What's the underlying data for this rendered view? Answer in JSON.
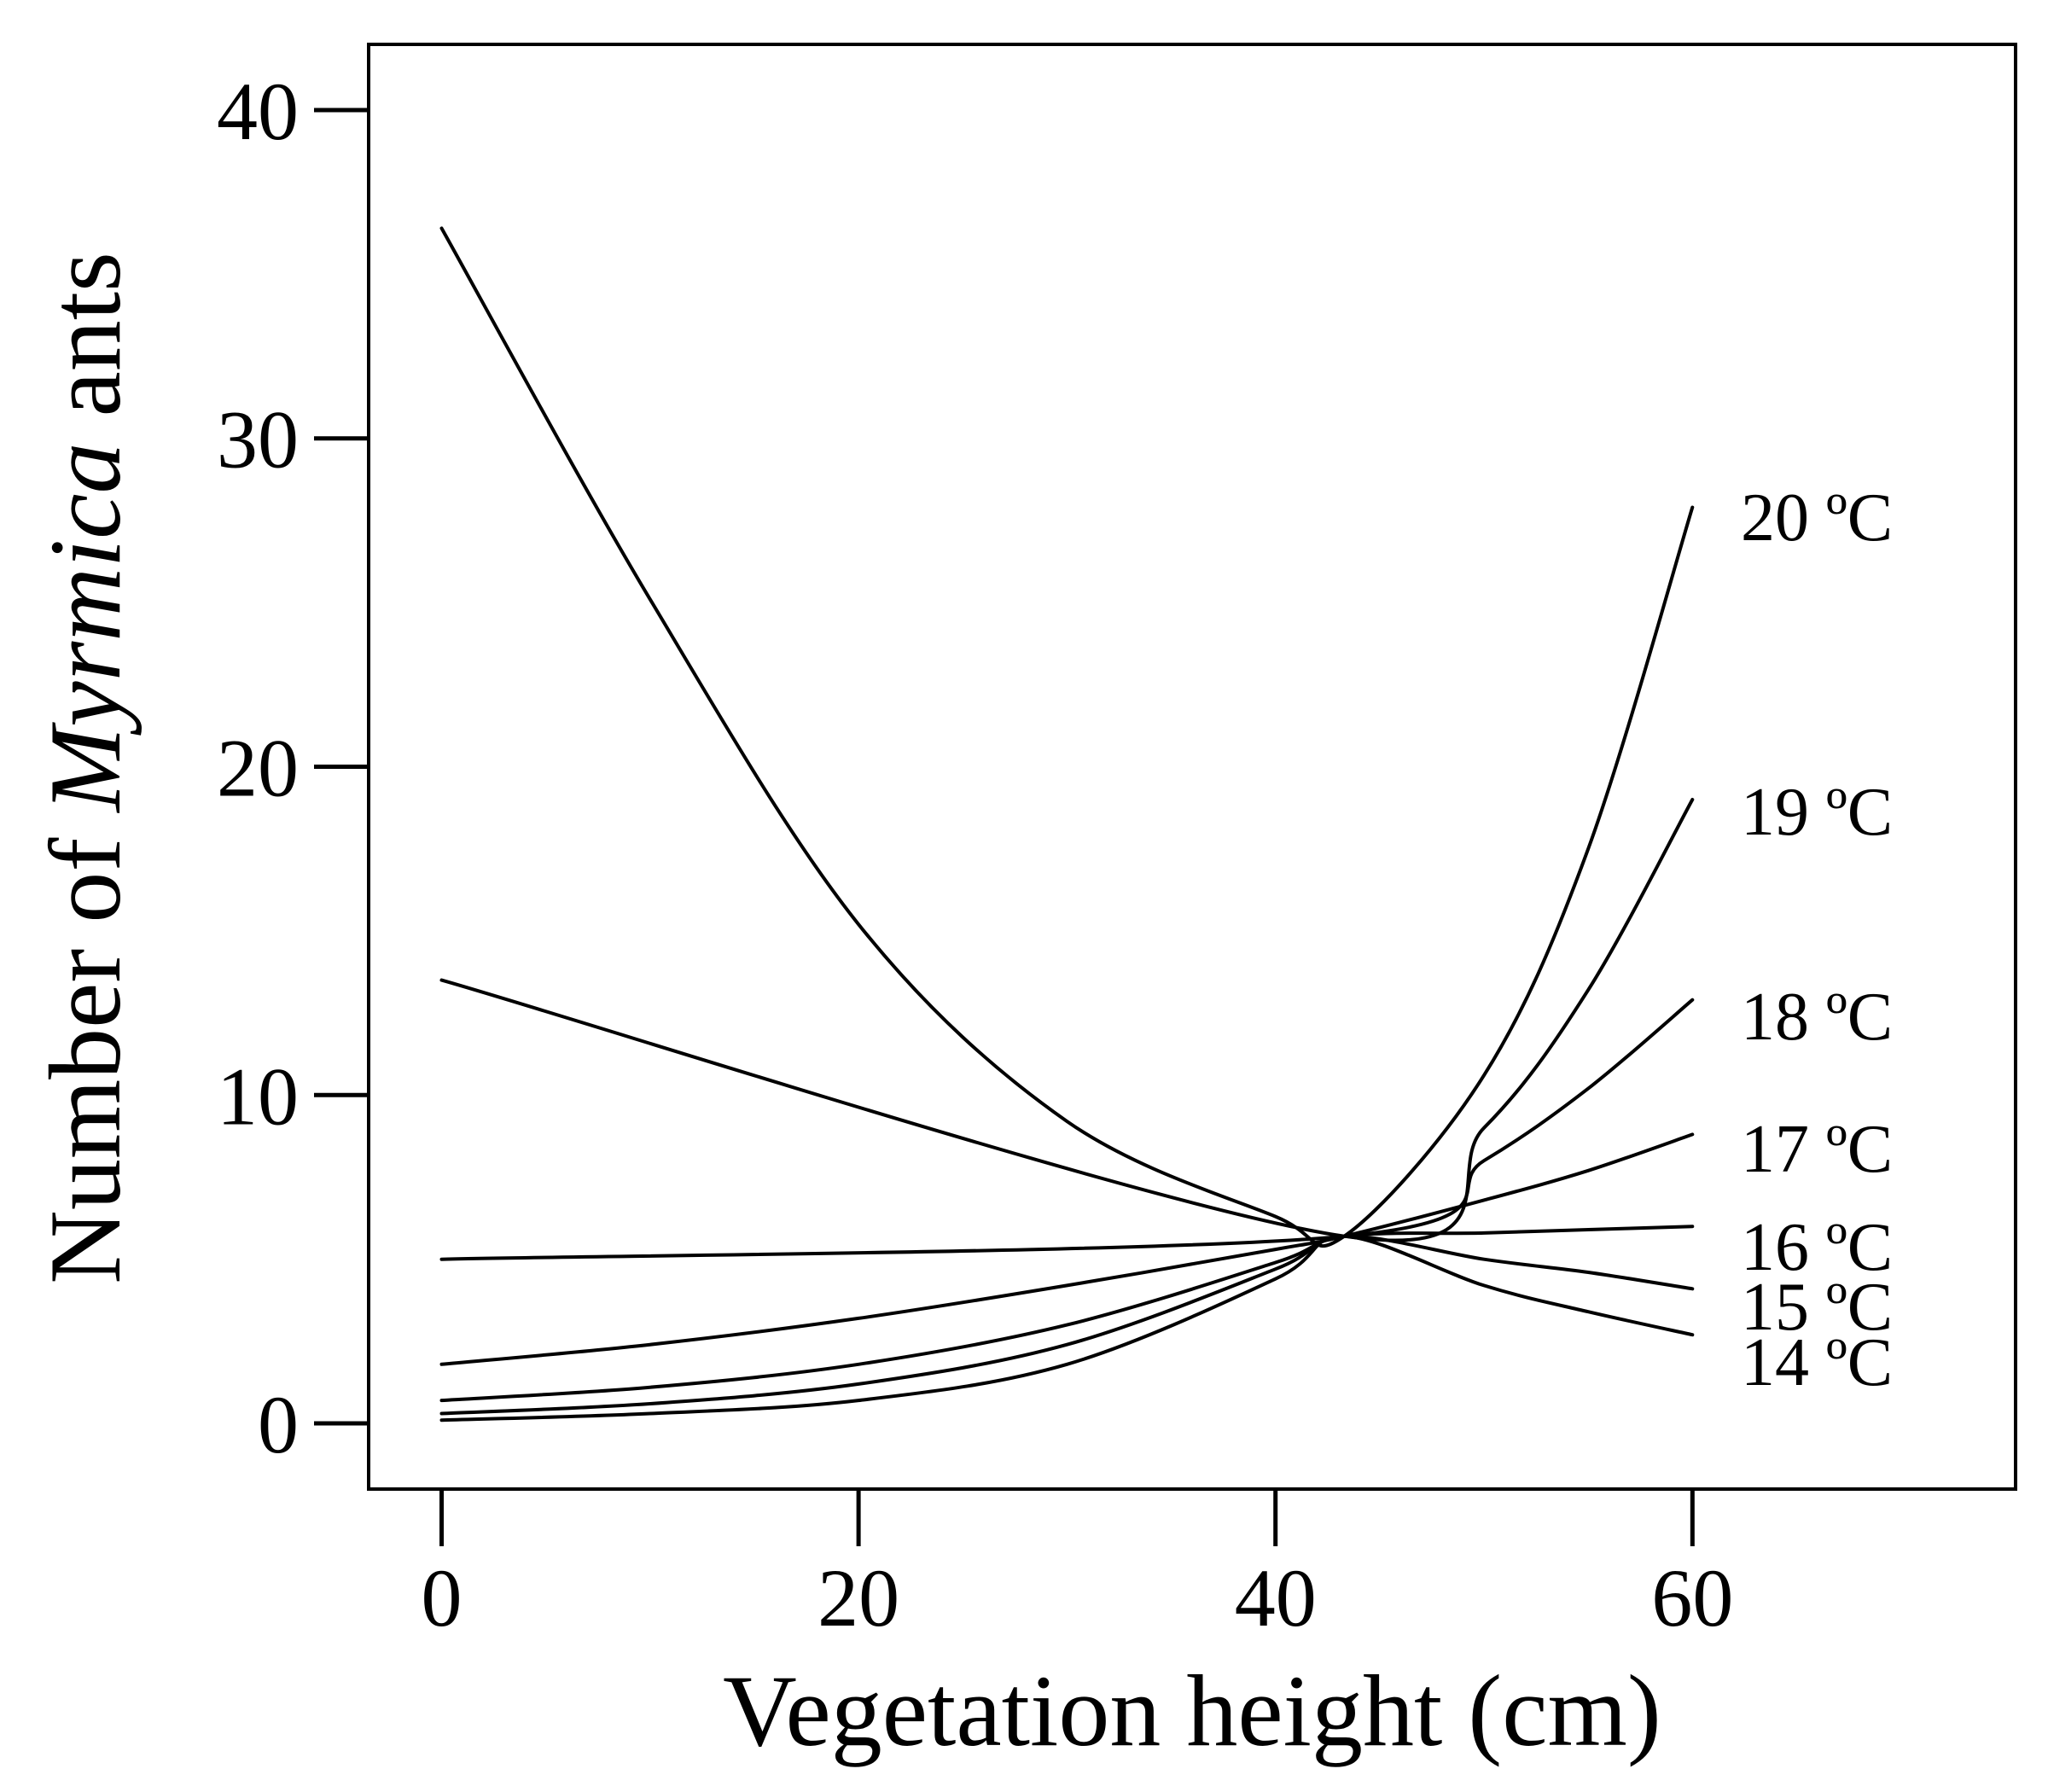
{
  "chart_data": {
    "type": "line",
    "title": "",
    "xlabel": "Vegetation height (cm)",
    "ylabel": {
      "prefix": "Number of ",
      "italic": "Myrmica",
      "suffix": " ants"
    },
    "xlim": [
      -3.5,
      75.5
    ],
    "ylim": [
      -2,
      42
    ],
    "xticks": [
      0,
      20,
      40,
      60
    ],
    "yticks": [
      0,
      10,
      20,
      30,
      40
    ],
    "grid": false,
    "legend": "none",
    "line_color": "#000000",
    "series": [
      {
        "name": "20 ºC",
        "x": [
          0,
          10,
          20,
          30,
          40,
          43.3,
          50,
          55,
          60
        ],
        "y": [
          36.4,
          25.1,
          15.2,
          9.2,
          6.3,
          5.7,
          10.6,
          17.5,
          27.9
        ]
      },
      {
        "name": "19 ºC",
        "x": [
          0,
          43.3,
          50,
          55,
          60
        ],
        "y": [
          13.5,
          5.7,
          9.0,
          13.2,
          19.0
        ]
      },
      {
        "name": "18 ºC",
        "x": [
          0,
          43.3,
          50,
          55,
          60
        ],
        "y": [
          5.0,
          5.7,
          8.0,
          10.2,
          12.9
        ]
      },
      {
        "name": "17 ºC",
        "x": [
          0,
          10,
          20,
          30,
          40,
          43.3,
          50,
          55,
          60
        ],
        "y": [
          1.8,
          2.4,
          3.2,
          4.2,
          5.3,
          5.7,
          6.8,
          7.7,
          8.8
        ]
      },
      {
        "name": "16 ºC",
        "x": [
          0,
          10,
          20,
          30,
          40,
          43.3,
          50,
          55,
          60
        ],
        "y": [
          0.7,
          1.1,
          1.8,
          3.0,
          4.9,
          5.7,
          5.8,
          5.9,
          6.0
        ]
      },
      {
        "name": "15 ºC",
        "x": [
          0,
          10,
          20,
          30,
          40,
          43.3,
          50,
          55,
          60
        ],
        "y": [
          0.3,
          0.6,
          1.2,
          2.4,
          4.7,
          5.7,
          5.0,
          4.6,
          4.1
        ]
      },
      {
        "name": "14 ºC",
        "x": [
          0,
          10,
          20,
          30,
          40,
          43.3,
          50,
          55,
          60
        ],
        "y": [
          0.1,
          0.3,
          0.7,
          1.8,
          4.4,
          5.7,
          4.2,
          3.4,
          2.7
        ]
      }
    ]
  }
}
